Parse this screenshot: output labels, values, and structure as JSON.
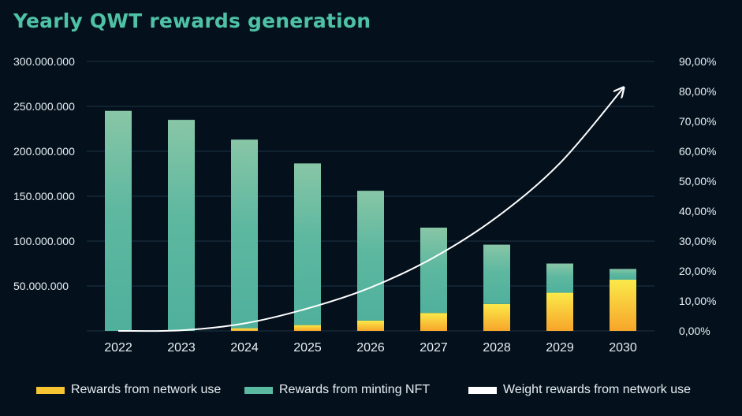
{
  "chart_data": {
    "type": "bar",
    "stacked": true,
    "title": "Yearly QWT rewards generation",
    "categories": [
      "2022",
      "2023",
      "2024",
      "2025",
      "2026",
      "2027",
      "2028",
      "2029",
      "2030"
    ],
    "series": [
      {
        "name": "Rewards from network use",
        "kind": "bar",
        "axis": "left",
        "color": "#f7c531",
        "values": [
          0,
          0,
          3000000,
          6500000,
          11500000,
          20000000,
          30000000,
          42500000,
          57000000
        ]
      },
      {
        "name": "Rewards from minting NFT",
        "kind": "bar",
        "axis": "left",
        "color": "#5bb9a2",
        "values": [
          245000000,
          235000000,
          210000000,
          180000000,
          144500000,
          95000000,
          66000000,
          32500000,
          12000000
        ]
      },
      {
        "name": "Weight rewards from network use",
        "kind": "line",
        "axis": "right",
        "color": "#ffffff",
        "values": [
          0,
          0.2,
          2.5,
          7.5,
          14.5,
          24.5,
          38,
          56,
          81
        ]
      }
    ],
    "y_left": {
      "ylim": [
        0,
        300000000
      ],
      "ticks": [
        50000000,
        100000000,
        150000000,
        200000000,
        250000000,
        300000000
      ],
      "tick_labels": [
        "50.000.000",
        "100.000.000",
        "150.000.000",
        "200.000.000",
        "250.000.000",
        "300.000.000"
      ]
    },
    "y_right": {
      "ylim": [
        0,
        90
      ],
      "ticks": [
        0,
        10,
        20,
        30,
        40,
        50,
        60,
        70,
        80,
        90
      ],
      "tick_labels": [
        "0,00%",
        "10,00%",
        "20,00%",
        "30,00%",
        "40,00%",
        "50,00%",
        "60,00%",
        "70,00%",
        "80,00%",
        "90,00%"
      ]
    },
    "grid": true,
    "legend_position": "bottom"
  },
  "legend": {
    "items": [
      {
        "label": "Rewards from network use",
        "color": "#f7c531"
      },
      {
        "label": "Rewards from minting NFT",
        "color": "#5bb9a2"
      },
      {
        "label": "Weight rewards from network use",
        "color": "#ffffff"
      }
    ]
  }
}
